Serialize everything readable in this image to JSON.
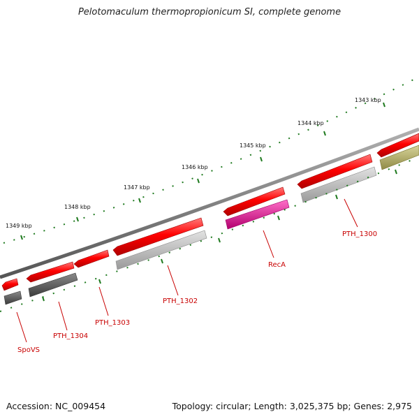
{
  "title": "Pelotomaculum thermopropionicum SI, complete genome",
  "footer": {
    "accession": "Accession: NC_009454",
    "summary": "Topology: circular; Length: 3,025,375 bp; Genes: 2,975"
  },
  "map": {
    "kbp_labels": [
      "1343 kbp",
      "1344 kbp",
      "1345 kbp",
      "1346 kbp",
      "1347 kbp",
      "1348 kbp",
      "1349 kbp"
    ],
    "gene_labels": [
      "SpoVS",
      "PTH_1304",
      "PTH_1303",
      "PTH_1302",
      "RecA",
      "PTH_1300"
    ],
    "colors": {
      "cds": "#ee0000",
      "backbone": "#8a8a8a",
      "tick": "#1f7a1f",
      "label": "#c80000",
      "track_dark": "#5a5a5a",
      "track_light": "#bdbdbd",
      "track_magenta": "#e0179a",
      "track_olive": "#b5b06a"
    }
  }
}
